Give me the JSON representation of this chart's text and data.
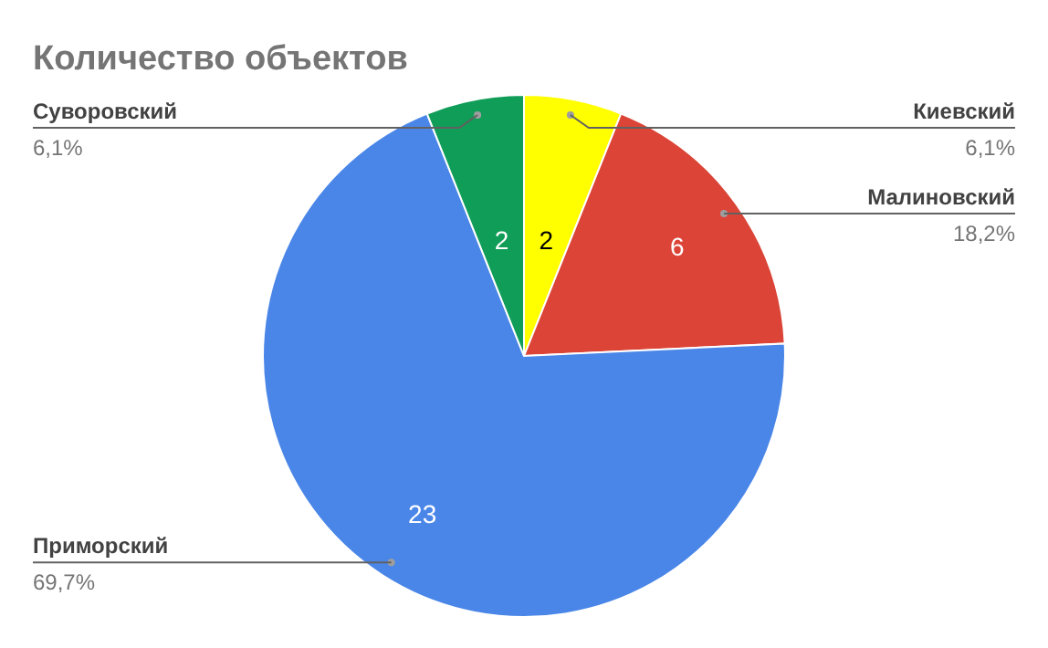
{
  "chart_data": {
    "type": "pie",
    "title": "Количество объектов",
    "categories": [
      "Киевский",
      "Малиновский",
      "Приморский",
      "Суворовский"
    ],
    "values": [
      2,
      6,
      23,
      2
    ],
    "colors": [
      "#ffff00",
      "#db4437",
      "#4a86e8",
      "#0f9d58"
    ],
    "data_labels": true,
    "annotations": [
      "6,1%",
      "18,2%",
      "69,7%",
      "6,1%"
    ]
  }
}
